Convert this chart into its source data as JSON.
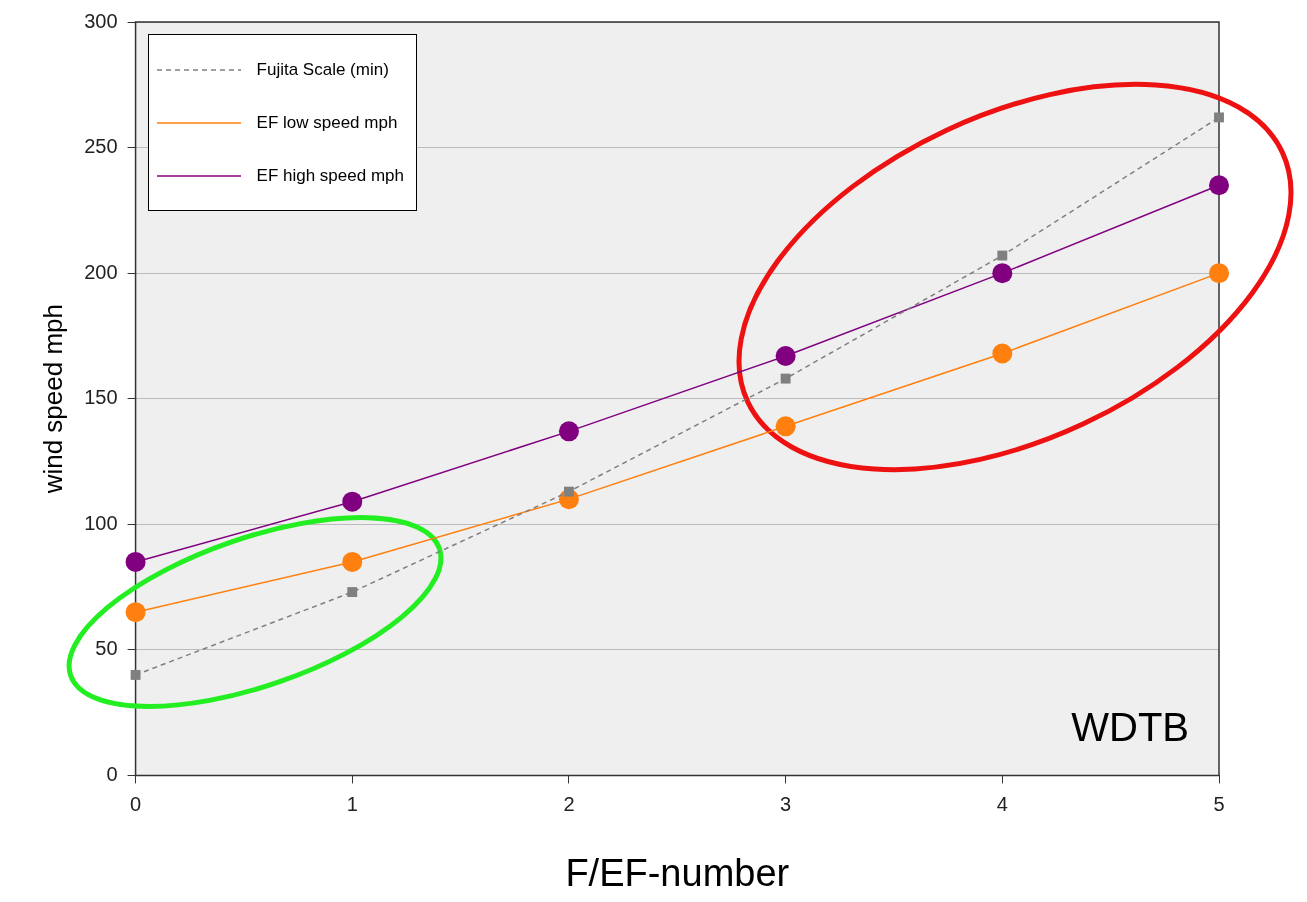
{
  "chart_data": {
    "type": "line",
    "xlabel": "F/EF-number",
    "ylabel": "wind speed mph",
    "x": [
      0,
      1,
      2,
      3,
      4,
      5
    ],
    "xlim": [
      0,
      5
    ],
    "xticks": [
      0,
      1,
      2,
      3,
      4,
      5
    ],
    "ylim": [
      0,
      300
    ],
    "yticks": [
      0,
      50,
      100,
      150,
      200,
      250,
      300
    ],
    "grid": "y",
    "legend": "top left",
    "series": [
      {
        "name": "Fujita Scale (min)",
        "color": "#808080",
        "values": [
          40,
          73,
          113,
          158,
          207,
          262
        ],
        "marker": "square",
        "line_style": "dashed"
      },
      {
        "name": "EF low speed mph",
        "color": "#ff7f0f",
        "values": [
          65,
          85,
          110,
          139,
          168,
          200
        ],
        "marker": "circle",
        "line_style": "solid"
      },
      {
        "name": "EF high speed mph",
        "color": "#800080",
        "values": [
          85,
          109,
          137,
          167,
          200,
          235
        ],
        "marker": "circle",
        "line_style": "solid"
      }
    ],
    "annotations": [
      "WDTB"
    ]
  }
}
